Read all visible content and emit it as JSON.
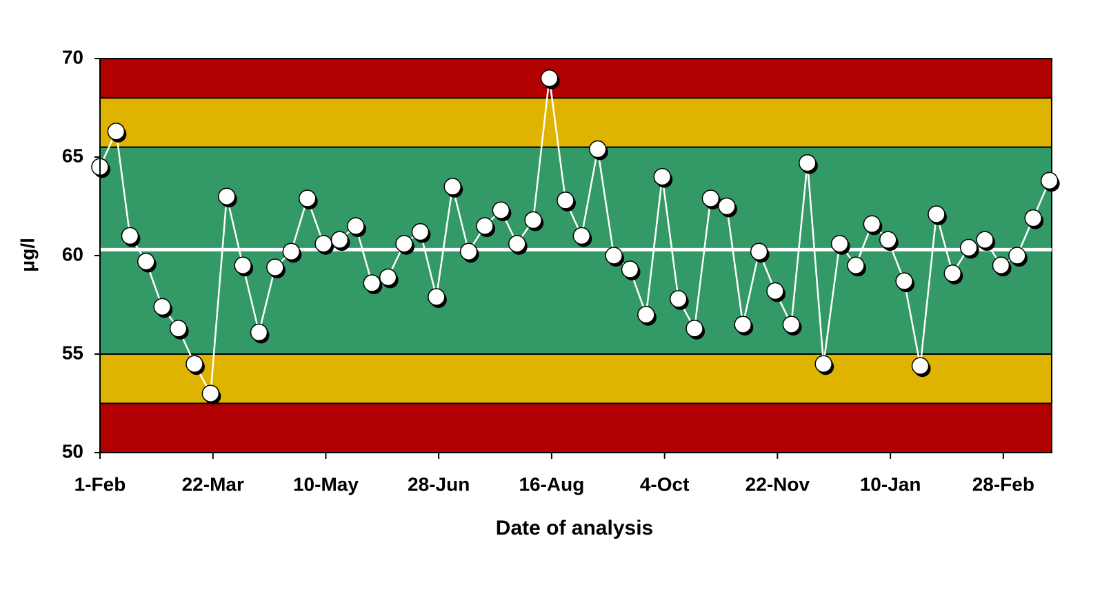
{
  "chart_data": {
    "type": "line",
    "x_label": "Date of analysis",
    "y_label": "μg/l",
    "xlim": [
      0,
      413
    ],
    "xticks": [
      {
        "value": 0,
        "label": "1-Feb"
      },
      {
        "value": 49,
        "label": "22-Mar"
      },
      {
        "value": 98,
        "label": "10-May"
      },
      {
        "value": 147,
        "label": "28-Jun"
      },
      {
        "value": 196,
        "label": "16-Aug"
      },
      {
        "value": 245,
        "label": "4-Oct"
      },
      {
        "value": 294,
        "label": "22-Nov"
      },
      {
        "value": 343,
        "label": "10-Jan"
      },
      {
        "value": 392,
        "label": "28-Feb"
      }
    ],
    "ylim": [
      50,
      70
    ],
    "yticks": [
      50,
      55,
      60,
      65,
      70
    ],
    "bands": [
      {
        "from": 68,
        "to": 70,
        "color": "#b00000"
      },
      {
        "from": 65.5,
        "to": 68,
        "color": "#deb400"
      },
      {
        "from": 55,
        "to": 65.5,
        "color": "#339966"
      },
      {
        "from": 52.5,
        "to": 55,
        "color": "#deb400"
      },
      {
        "from": 50,
        "to": 52.5,
        "color": "#b00000"
      }
    ],
    "center_line": 60.3,
    "center_line_color": "#ffffff",
    "line_color": "#ffffff",
    "marker_color": "#ffffff",
    "x": [
      0,
      7,
      13,
      20,
      27,
      34,
      41,
      48,
      55,
      62,
      69,
      76,
      83,
      90,
      97,
      104,
      111,
      118,
      125,
      132,
      139,
      146,
      153,
      160,
      167,
      174,
      181,
      188,
      195,
      202,
      209,
      216,
      223,
      230,
      237,
      244,
      251,
      258,
      265,
      272,
      279,
      286,
      293,
      300,
      307,
      314,
      321,
      328,
      335,
      342,
      349,
      356,
      363,
      370,
      377,
      384,
      391,
      398,
      405,
      412
    ],
    "values": [
      64.5,
      66.3,
      61.0,
      59.7,
      57.4,
      56.3,
      54.5,
      53.0,
      63.0,
      59.5,
      56.1,
      59.4,
      60.2,
      62.9,
      60.6,
      60.8,
      61.5,
      58.6,
      58.9,
      60.6,
      61.2,
      57.9,
      63.5,
      60.2,
      61.5,
      62.3,
      60.6,
      61.8,
      69.0,
      62.8,
      61.0,
      65.4,
      60.0,
      59.3,
      57.0,
      64.0,
      57.8,
      56.3,
      62.9,
      62.5,
      56.5,
      60.2,
      58.2,
      56.5,
      64.7,
      54.5,
      60.6,
      59.5,
      61.6,
      60.8,
      58.7,
      54.4,
      62.1,
      59.1,
      60.4,
      60.8,
      59.5,
      60.0,
      61.9,
      63.8
    ]
  }
}
